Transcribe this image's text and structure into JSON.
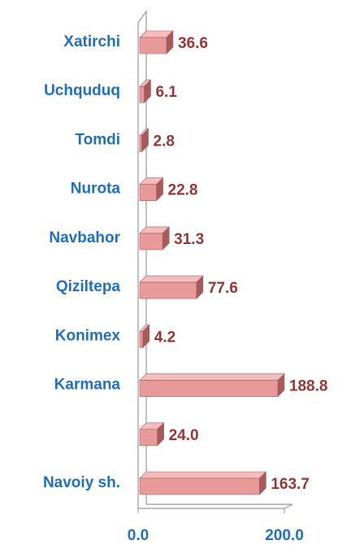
{
  "chart_data": {
    "type": "bar3d",
    "categories": [
      "Xatirchi",
      "Uchquduq",
      "Tomdi",
      "Nurota",
      "Navbahor",
      "Qiziltepa",
      "Konimex",
      "Karmana",
      null,
      "Navoiy sh."
    ],
    "values": [
      36.6,
      6.1,
      2.8,
      22.8,
      31.3,
      77.6,
      4.2,
      188.8,
      24.0,
      163.7
    ],
    "value_labels": [
      "36.6",
      "6.1",
      "2.8",
      "22.8",
      "31.3",
      "77.6",
      "4.2",
      "188.8",
      "24.0",
      "163.7"
    ],
    "color": "#e8999a",
    "xlim": [
      0,
      200
    ],
    "xticks": [
      {
        "value": 0,
        "label": "0.0"
      },
      {
        "value": 200,
        "label": "200.0"
      }
    ],
    "grid": false
  }
}
